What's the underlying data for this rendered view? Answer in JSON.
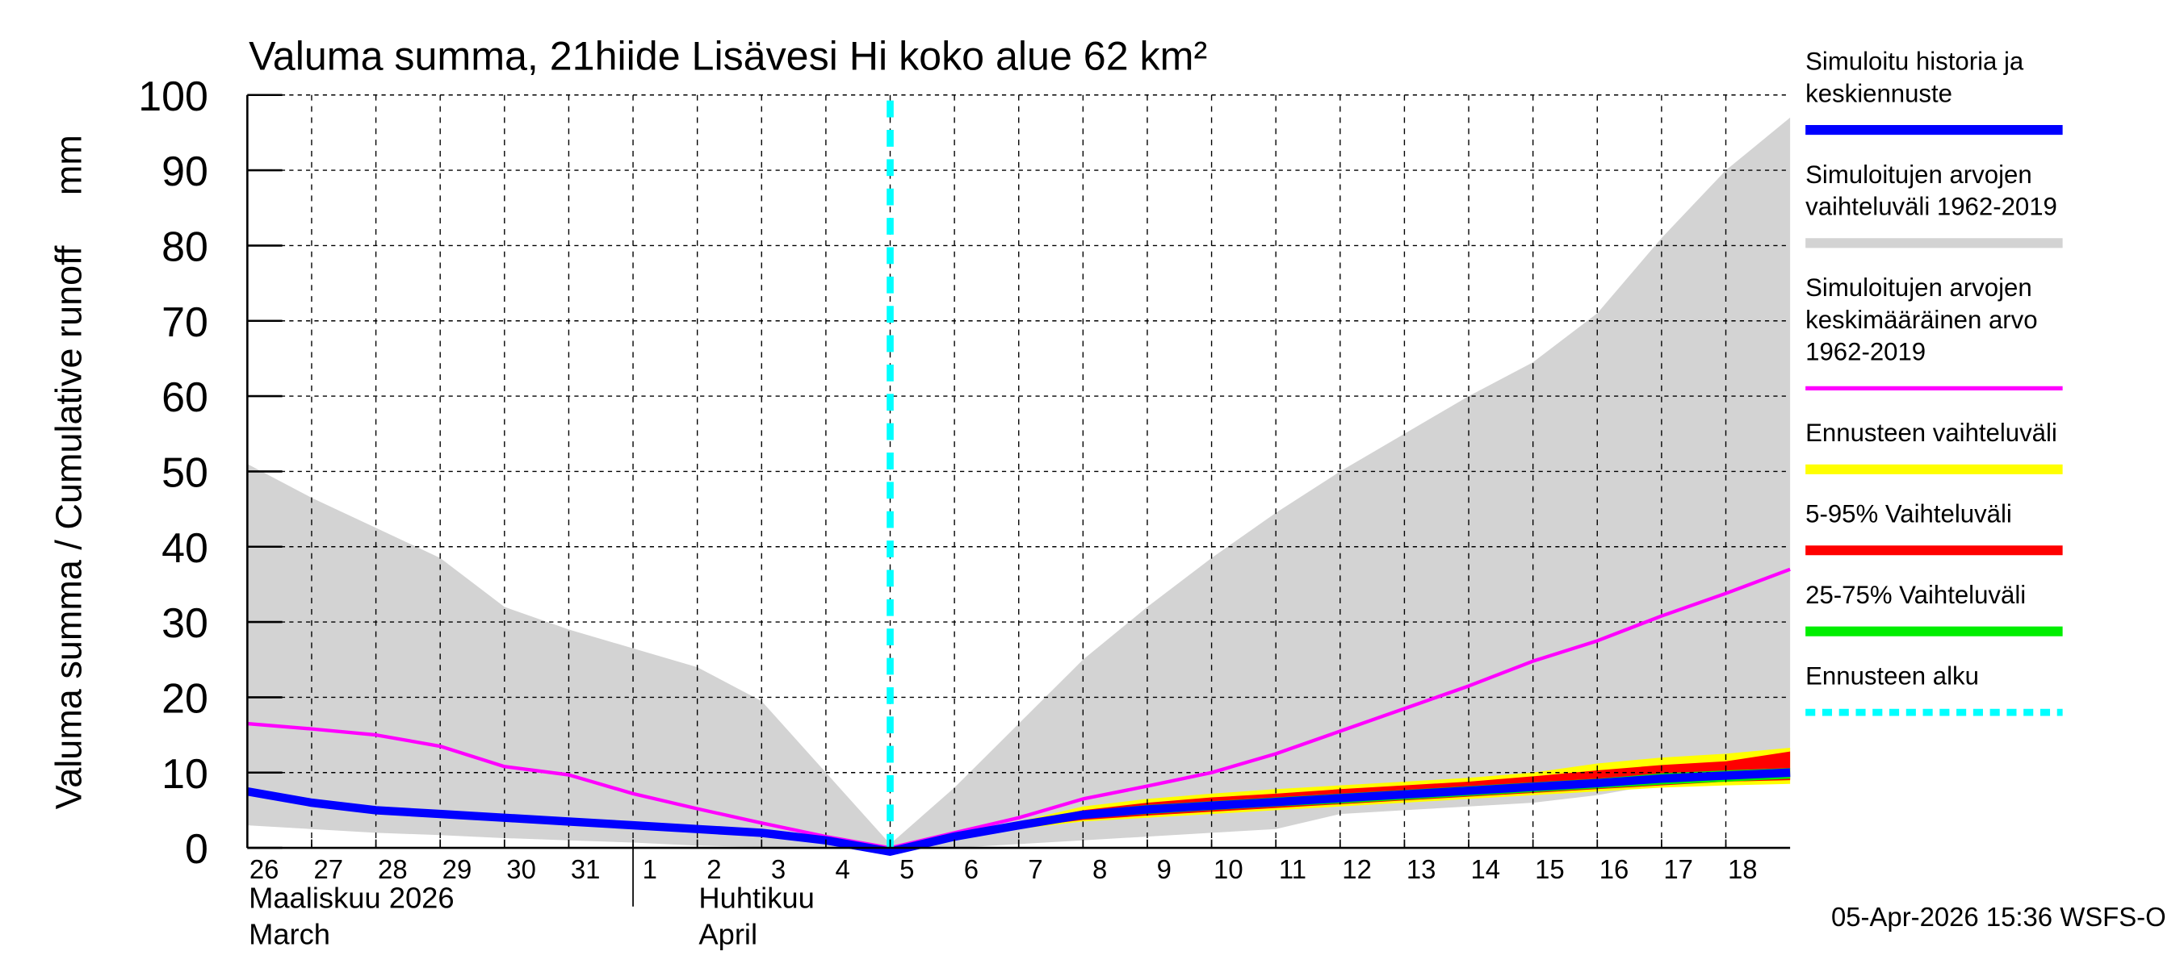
{
  "chart_data": {
    "type": "area",
    "title": "Valuma summa, 21hiide Lisävesi Hi koko alue 62 km²",
    "ylabel": "Valuma summa / Cumulative runoff     mm",
    "ylim": [
      0,
      100
    ],
    "yticks": [
      0,
      10,
      20,
      30,
      40,
      50,
      60,
      70,
      80,
      90,
      100
    ],
    "grid": true,
    "legend_placement": "right",
    "x": [
      "26",
      "27",
      "28",
      "29",
      "30",
      "31",
      "1",
      "2",
      "3",
      "4",
      "5",
      "6",
      "7",
      "8",
      "9",
      "10",
      "11",
      "12",
      "13",
      "14",
      "15",
      "16",
      "17",
      "18",
      "19"
    ],
    "xtick_labels": [
      "26",
      "27",
      "28",
      "29",
      "30",
      "31",
      "1",
      "2",
      "3",
      "4",
      "5",
      "6",
      "7",
      "8",
      "9",
      "10",
      "11",
      "12",
      "13",
      "14",
      "15",
      "16",
      "17",
      "18"
    ],
    "month_labels": [
      {
        "fi": "Maaliskuu 2026",
        "en": "March"
      },
      {
        "fi": "Huhtikuu",
        "en": "April"
      }
    ],
    "forecast_start": "5",
    "series": [
      {
        "name": "Simuloitujen arvojen vaihteluväli 1962-2019",
        "kind": "band",
        "color": "#d3d3d3",
        "upper": [
          51,
          46.5,
          42.5,
          38.5,
          32,
          29,
          26.5,
          24,
          19.5,
          10,
          0.5,
          8,
          16.5,
          25,
          32,
          38.5,
          44.5,
          50,
          55,
          60,
          64.5,
          71,
          81,
          90,
          97
        ],
        "lower": [
          3,
          2.5,
          2,
          1.7,
          1.3,
          1,
          0.7,
          0.3,
          0.1,
          0,
          0,
          0,
          0.5,
          1,
          1.5,
          2,
          2.5,
          4.5,
          5,
          5.5,
          6,
          7,
          8.5,
          9.5,
          10.5
        ]
      },
      {
        "name": "Ennusteen vaihteluväli",
        "kind": "band",
        "color": "#ffff00",
        "upper": [
          null,
          null,
          null,
          null,
          null,
          null,
          null,
          null,
          null,
          null,
          0,
          2,
          3.5,
          5.5,
          6.5,
          7.2,
          7.8,
          8.3,
          8.8,
          9.3,
          10,
          11.2,
          12,
          12.5,
          13.3
        ],
        "lower": [
          null,
          null,
          null,
          null,
          null,
          null,
          null,
          null,
          null,
          null,
          0,
          1,
          2.5,
          3.5,
          4,
          4.5,
          5,
          5.5,
          6,
          6.5,
          7,
          7.5,
          8,
          8.3,
          8.5
        ]
      },
      {
        "name": "5-95% Vaihteluväli",
        "kind": "band",
        "color": "#ff0000",
        "upper": [
          null,
          null,
          null,
          null,
          null,
          null,
          null,
          null,
          null,
          null,
          0,
          1.8,
          3.3,
          5,
          6,
          6.7,
          7.2,
          7.8,
          8.3,
          8.8,
          9.5,
          10.3,
          11,
          11.5,
          12.8
        ],
        "lower": [
          null,
          null,
          null,
          null,
          null,
          null,
          null,
          null,
          null,
          null,
          0,
          1,
          2.7,
          3.7,
          4.3,
          4.8,
          5.3,
          5.8,
          6.3,
          6.8,
          7.3,
          7.8,
          8.3,
          8.8,
          9
        ]
      },
      {
        "name": "25-75% Vaihteluväli",
        "kind": "band",
        "color": "#00ee00",
        "upper": [
          null,
          null,
          null,
          null,
          null,
          null,
          null,
          null,
          null,
          null,
          0,
          1.9,
          3.5,
          4.9,
          5.7,
          6.2,
          6.7,
          7.2,
          7.7,
          8.2,
          8.7,
          9.2,
          9.9,
          10.3,
          10.6
        ],
        "lower": [
          null,
          null,
          null,
          null,
          null,
          null,
          null,
          null,
          null,
          null,
          0,
          1.1,
          2.5,
          3.9,
          4.5,
          5,
          5.5,
          5.9,
          6.4,
          6.9,
          7.4,
          7.9,
          8.4,
          8.8,
          9.2
        ]
      },
      {
        "name": "Simuloitujen arvojen keskimääräinen arvo 1962-2019",
        "kind": "line",
        "color": "#ff00ff",
        "values": [
          16.5,
          15.8,
          15,
          13.5,
          10.8,
          9.7,
          7.2,
          5.2,
          3.3,
          1.5,
          0,
          2,
          4,
          6.5,
          8.2,
          10,
          12.5,
          15.5,
          18.5,
          21.5,
          24.8,
          27.5,
          30.8,
          33.8,
          37
        ]
      },
      {
        "name": "Simuloitu historia ja keskiennuste",
        "kind": "line",
        "color": "#0000ff",
        "values": [
          7.5,
          6,
          5,
          4.5,
          4,
          3.5,
          3,
          2.5,
          2,
          1,
          -0.5,
          1.5,
          3,
          4.4,
          5.1,
          5.6,
          6.1,
          6.6,
          7.1,
          7.6,
          8.1,
          8.6,
          9.2,
          9.6,
          10
        ]
      }
    ]
  },
  "legend": [
    {
      "label": "Simuloitu historia ja\nkeskiennuste",
      "color": "#0000ff",
      "style": "solid"
    },
    {
      "label": "Simuloitujen arvojen\nvaihteluväli 1962-2019",
      "color": "#d3d3d3",
      "style": "solid"
    },
    {
      "label": "Simuloitujen arvojen\nkeskimääräinen arvo\n1962-2019",
      "color": "#ff00ff",
      "style": "thin"
    },
    {
      "label": "Ennusteen vaihteluväli",
      "color": "#ffff00",
      "style": "solid"
    },
    {
      "label": "5-95% Vaihteluväli",
      "color": "#ff0000",
      "style": "solid"
    },
    {
      "label": "25-75% Vaihteluväli",
      "color": "#00ee00",
      "style": "solid"
    },
    {
      "label": "Ennusteen alku",
      "color": "#00ffff",
      "style": "dotted"
    }
  ],
  "footer": {
    "timestamp": "05-Apr-2026 15:36 WSFS-O"
  }
}
